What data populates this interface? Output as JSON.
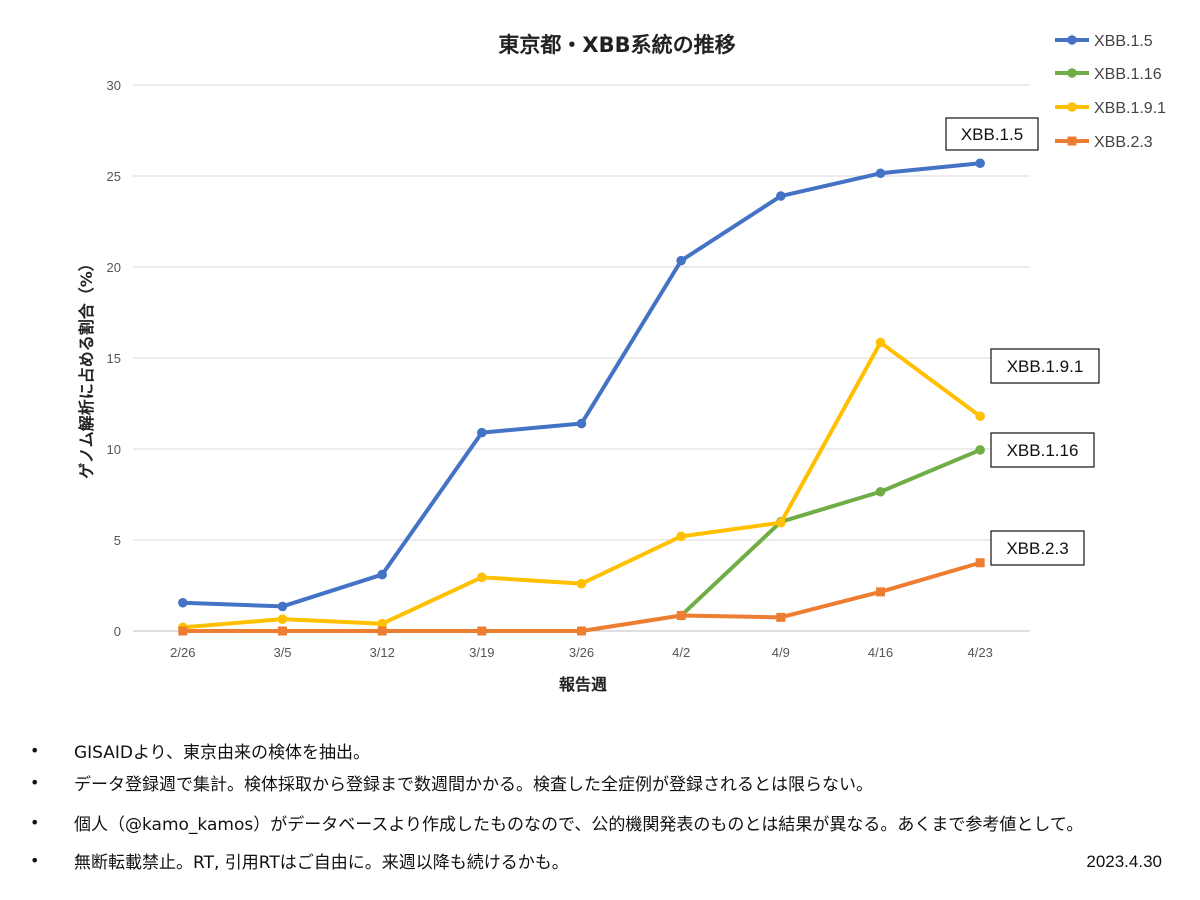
{
  "chart_data": {
    "type": "line",
    "title": "東京都・XBB系統の推移",
    "xlabel": "報告週",
    "ylabel": "ゲノム解析に占める割合（%）",
    "categories": [
      "2/26",
      "3/5",
      "3/12",
      "3/19",
      "3/26",
      "4/2",
      "4/9",
      "4/16",
      "4/23"
    ],
    "ylim": [
      0,
      30
    ],
    "yticks": [
      "0",
      "5",
      "10",
      "15",
      "20",
      "25",
      "30"
    ],
    "grid": true,
    "legend_position": "top-right",
    "series": [
      {
        "name": "XBB.1.5",
        "color": "#4472C4",
        "marker": "circle",
        "values": [
          1.55,
          1.35,
          3.1,
          10.9,
          11.4,
          20.35,
          23.9,
          25.15,
          25.7
        ]
      },
      {
        "name": "XBB.1.16",
        "color": "#70AD47",
        "marker": "circle",
        "values": [
          null,
          null,
          null,
          null,
          null,
          0.85,
          6.0,
          7.65,
          9.95
        ]
      },
      {
        "name": "XBB.1.9.1",
        "color": "#FFC000",
        "marker": "circle",
        "values": [
          0.2,
          0.65,
          0.4,
          2.95,
          2.6,
          5.2,
          5.95,
          15.85,
          11.8
        ]
      },
      {
        "name": "XBB.2.3",
        "color": "#ED7D31",
        "marker": "square",
        "values": [
          0,
          0,
          0,
          0,
          0,
          0.85,
          0.75,
          2.15,
          3.75
        ]
      }
    ],
    "annotations": [
      {
        "text": "XBB.1.5",
        "series": 0
      },
      {
        "text": "XBB.1.9.1",
        "series": 2
      },
      {
        "text": "XBB.1.16",
        "series": 1
      },
      {
        "text": "XBB.2.3",
        "series": 3
      }
    ]
  },
  "notes": [
    {
      "bullet": "•",
      "text": "GISAIDより、東京由来の検体を抽出。"
    },
    {
      "bullet": "•",
      "text": "データ登録週で集計。検体採取から登録まで数週間かかる。検査した全症例が登録されるとは限らない。"
    },
    {
      "bullet": "•",
      "text": "個人（@kamo_kamos）がデータベースより作成したものなので、公的機関発表のものとは結果が異なる。あくまで参考値として。"
    },
    {
      "bullet": "•",
      "text": "無断転載禁止。RT, 引用RTはご自由に。来週以降も続けるかも。"
    }
  ],
  "date": "2023.4.30"
}
